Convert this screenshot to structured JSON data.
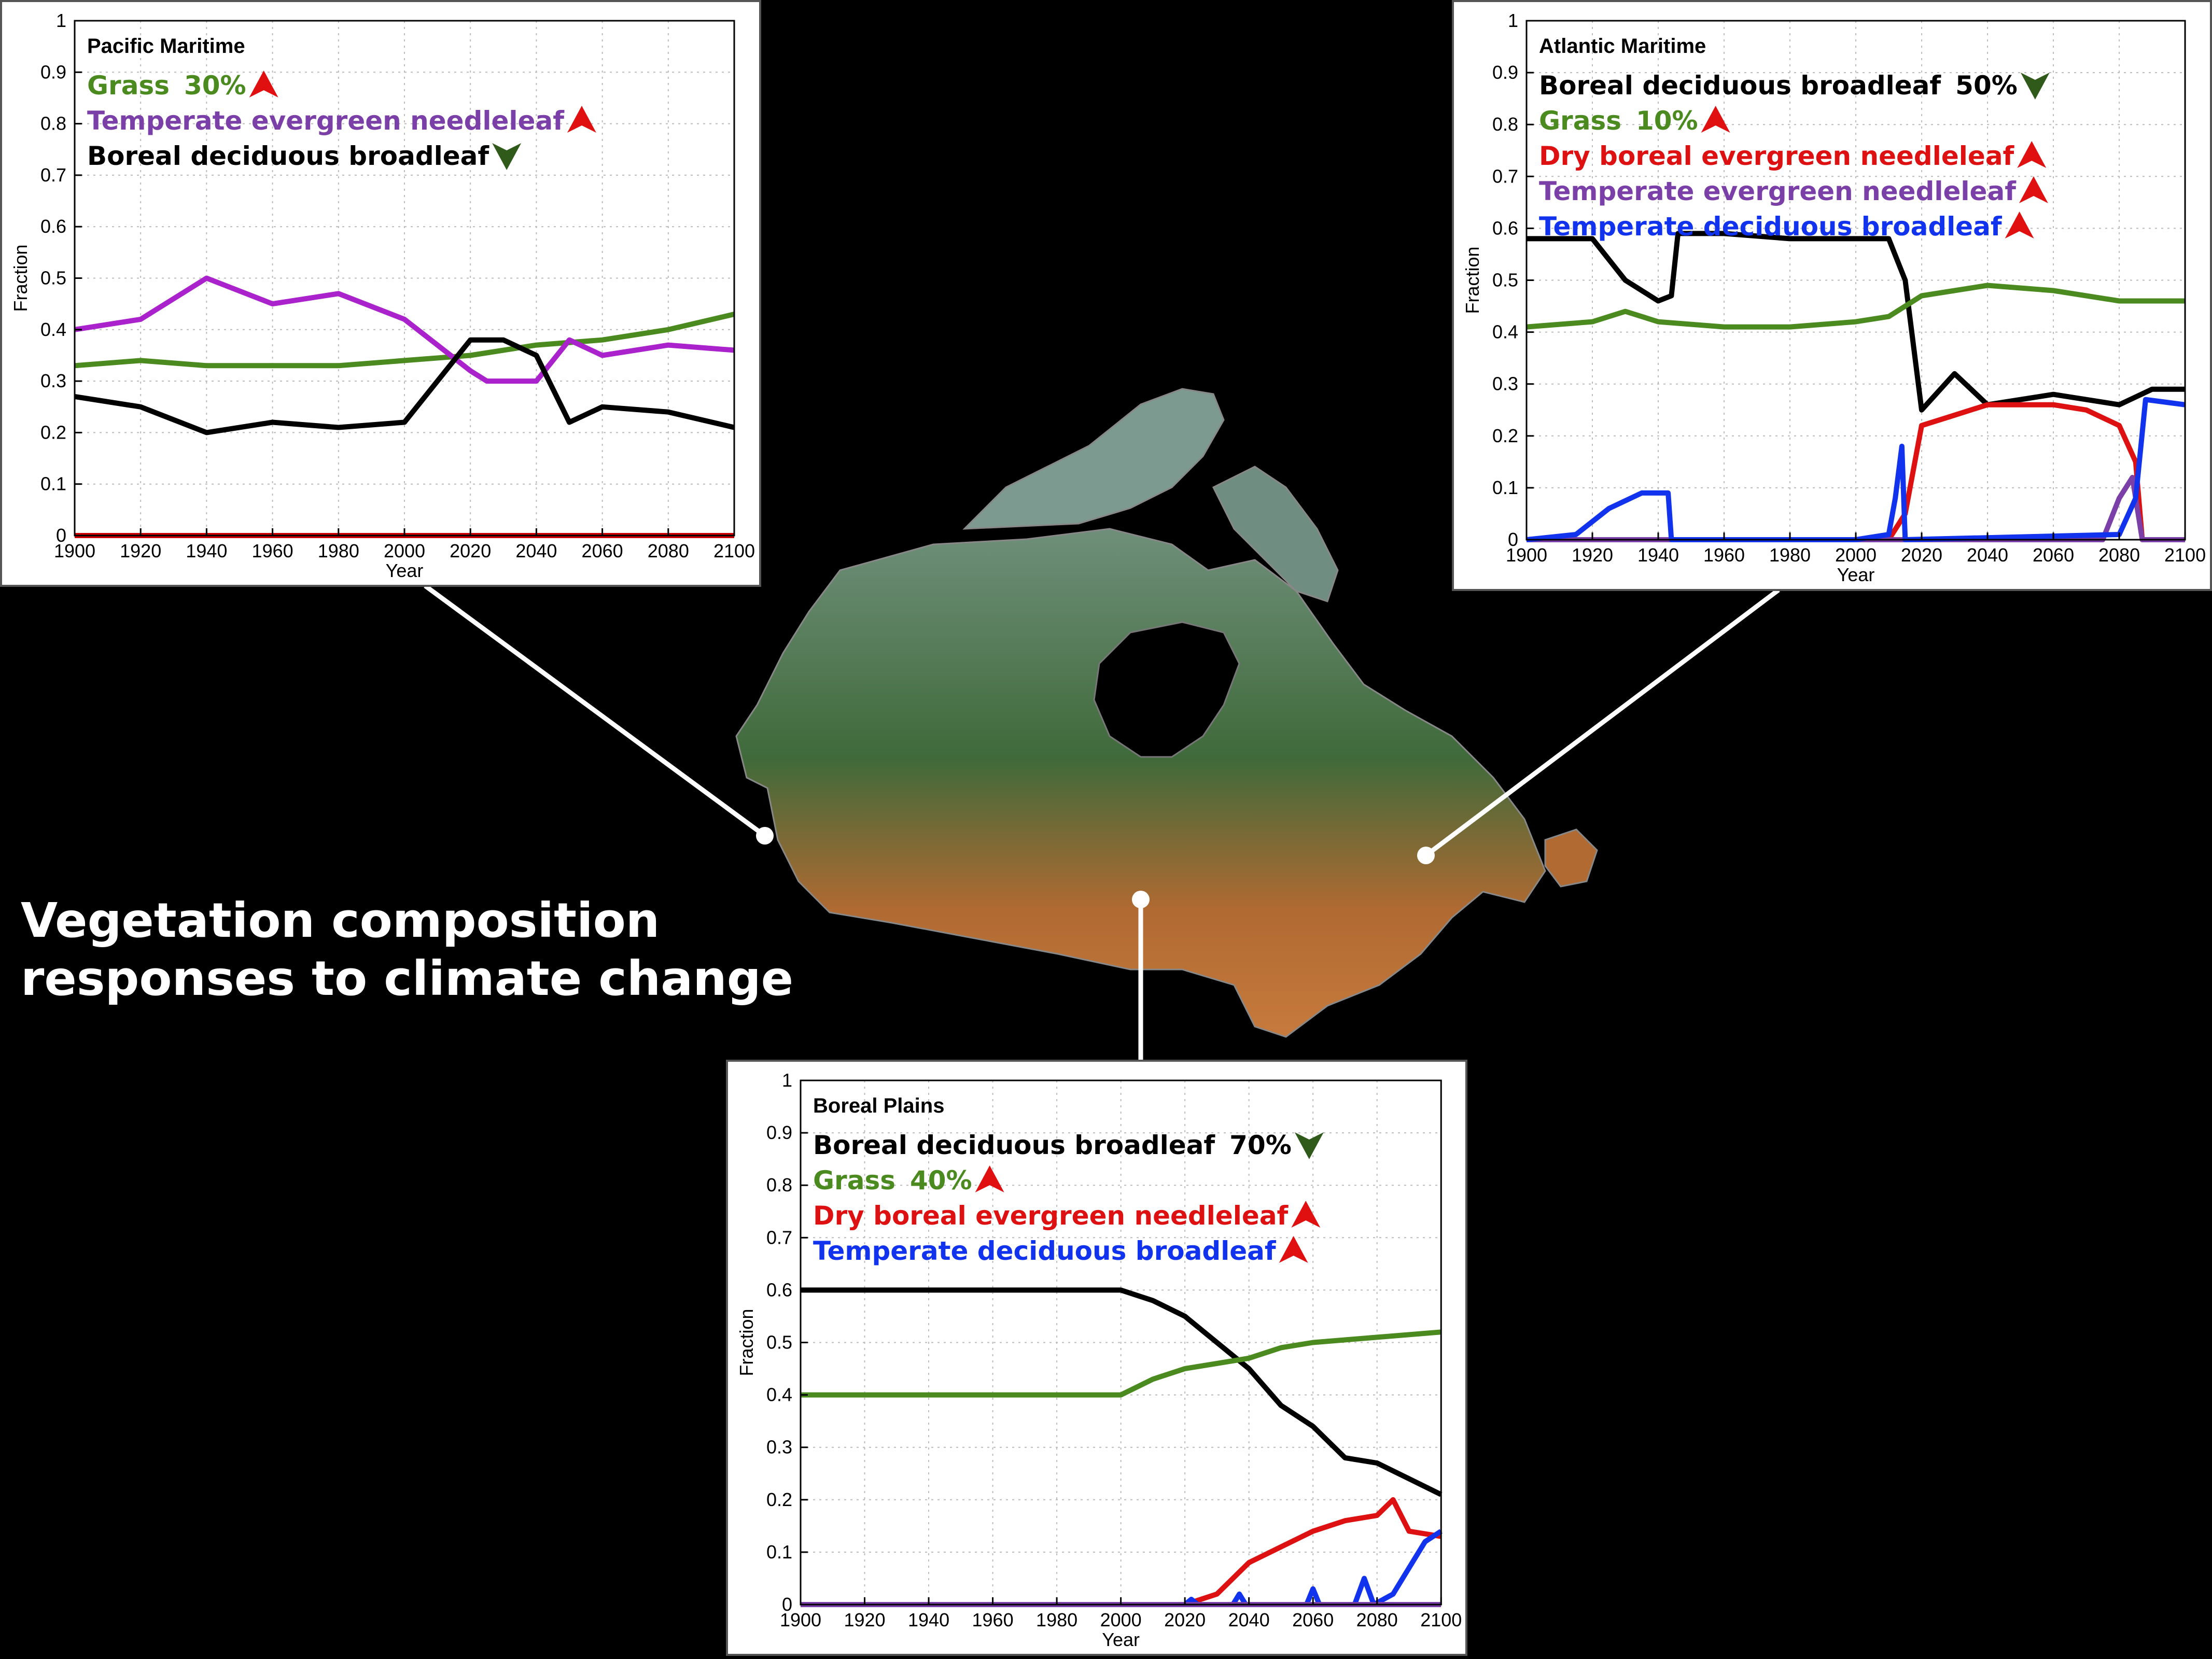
{
  "page_title_lines": [
    "Vegetation composition",
    "responses to climate change"
  ],
  "chart_data": [
    {
      "type": "line",
      "region": "Pacific Maritime",
      "xlabel": "Year",
      "ylabel": "Fraction",
      "xlim": [
        1900,
        2100
      ],
      "ylim": [
        0,
        1
      ],
      "xticks": [
        "1900",
        "1920",
        "1940",
        "1960",
        "1980",
        "2000",
        "2020",
        "2040",
        "2060",
        "2080",
        "2100"
      ],
      "yticks": [
        "0",
        "0.1",
        "0.2",
        "0.3",
        "0.4",
        "0.5",
        "0.6",
        "0.7",
        "0.8",
        "0.9",
        "1"
      ],
      "grid": true,
      "legend": [
        {
          "name": "Grass",
          "change": "30%",
          "direction": "up",
          "color": "#4a8a1f"
        },
        {
          "name": "Temperate evergreen needleleaf",
          "change": "",
          "direction": "up",
          "color": "#7b3fa8"
        },
        {
          "name": "Boreal deciduous broadleaf",
          "change": "",
          "direction": "down",
          "color": "#000000"
        }
      ],
      "series": [
        {
          "name": "Grass",
          "color": "#4a8a1f",
          "x": [
            1900,
            1920,
            1940,
            1960,
            1980,
            2000,
            2020,
            2040,
            2060,
            2080,
            2100
          ],
          "y": [
            0.33,
            0.34,
            0.33,
            0.33,
            0.33,
            0.34,
            0.35,
            0.37,
            0.38,
            0.4,
            0.43
          ]
        },
        {
          "name": "Temperate evergreen needleleaf",
          "color": "#aa22cc",
          "x": [
            1900,
            1920,
            1940,
            1960,
            1980,
            2000,
            2020,
            2025,
            2040,
            2050,
            2060,
            2080,
            2100
          ],
          "y": [
            0.4,
            0.42,
            0.5,
            0.45,
            0.47,
            0.42,
            0.32,
            0.3,
            0.3,
            0.38,
            0.35,
            0.37,
            0.36
          ]
        },
        {
          "name": "Boreal deciduous broadleaf",
          "color": "#000000",
          "x": [
            1900,
            1920,
            1940,
            1960,
            1980,
            2000,
            2020,
            2030,
            2040,
            2050,
            2060,
            2080,
            2100
          ],
          "y": [
            0.27,
            0.25,
            0.2,
            0.22,
            0.21,
            0.22,
            0.38,
            0.38,
            0.35,
            0.22,
            0.25,
            0.24,
            0.21
          ]
        },
        {
          "name": "",
          "color": "#cc0000",
          "x": [
            1900,
            2100
          ],
          "y": [
            0.0,
            0.0
          ]
        }
      ]
    },
    {
      "type": "line",
      "region": "Atlantic Maritime",
      "xlabel": "Year",
      "ylabel": "Fraction",
      "xlim": [
        1900,
        2100
      ],
      "ylim": [
        0,
        1
      ],
      "xticks": [
        "1900",
        "1920",
        "1940",
        "1960",
        "1980",
        "2000",
        "2020",
        "2040",
        "2060",
        "2080",
        "2100"
      ],
      "yticks": [
        "0",
        "0.1",
        "0.2",
        "0.3",
        "0.4",
        "0.5",
        "0.6",
        "0.7",
        "0.8",
        "0.9",
        "1"
      ],
      "grid": true,
      "legend": [
        {
          "name": "Boreal deciduous broadleaf",
          "change": "50%",
          "direction": "down",
          "color": "#000000"
        },
        {
          "name": "Grass",
          "change": "10%",
          "direction": "up",
          "color": "#4a8a1f"
        },
        {
          "name": "Dry boreal evergreen needleleaf",
          "change": "",
          "direction": "up",
          "color": "#dd1111"
        },
        {
          "name": "Temperate evergreen needleleaf",
          "change": "",
          "direction": "up",
          "color": "#7b3fa8"
        },
        {
          "name": "Temperate deciduous broadleaf",
          "change": "",
          "direction": "up",
          "color": "#1133ee"
        }
      ],
      "series": [
        {
          "name": "Boreal deciduous broadleaf",
          "color": "#000000",
          "x": [
            1900,
            1920,
            1930,
            1940,
            1944,
            1946,
            1960,
            1980,
            2000,
            2010,
            2015,
            2020,
            2030,
            2040,
            2060,
            2080,
            2090,
            2100
          ],
          "y": [
            0.58,
            0.58,
            0.5,
            0.46,
            0.47,
            0.59,
            0.59,
            0.58,
            0.58,
            0.58,
            0.5,
            0.25,
            0.32,
            0.26,
            0.28,
            0.26,
            0.29,
            0.29
          ]
        },
        {
          "name": "Grass",
          "color": "#4a8a1f",
          "x": [
            1900,
            1920,
            1930,
            1940,
            1960,
            1980,
            2000,
            2010,
            2020,
            2040,
            2060,
            2080,
            2100
          ],
          "y": [
            0.41,
            0.42,
            0.44,
            0.42,
            0.41,
            0.41,
            0.42,
            0.43,
            0.47,
            0.49,
            0.48,
            0.46,
            0.46
          ]
        },
        {
          "name": "Dry boreal evergreen needleleaf",
          "color": "#dd1111",
          "x": [
            1900,
            2010,
            2015,
            2020,
            2030,
            2040,
            2060,
            2070,
            2080,
            2085,
            2087,
            2100
          ],
          "y": [
            0.0,
            0.0,
            0.05,
            0.22,
            0.24,
            0.26,
            0.26,
            0.25,
            0.22,
            0.15,
            0.0,
            0.0
          ]
        },
        {
          "name": "Temperate evergreen needleleaf",
          "color": "#7b3fa8",
          "x": [
            1900,
            2075,
            2080,
            2084,
            2087,
            2100
          ],
          "y": [
            0.0,
            0.0,
            0.08,
            0.12,
            0.0,
            0.0
          ]
        },
        {
          "name": "Temperate deciduous broadleaf",
          "color": "#1133ee",
          "x": [
            1900,
            1915,
            1925,
            1935,
            1943,
            1944,
            2000,
            2010,
            2012,
            2014,
            2015,
            2080,
            2085,
            2088,
            2100
          ],
          "y": [
            0.0,
            0.01,
            0.06,
            0.09,
            0.09,
            0.0,
            0.0,
            0.01,
            0.08,
            0.18,
            0.0,
            0.01,
            0.08,
            0.27,
            0.26
          ]
        }
      ]
    },
    {
      "type": "line",
      "region": "Boreal Plains",
      "xlabel": "Year",
      "ylabel": "Fraction",
      "xlim": [
        1900,
        2100
      ],
      "ylim": [
        0,
        1
      ],
      "xticks": [
        "1900",
        "1920",
        "1940",
        "1960",
        "1980",
        "2000",
        "2020",
        "2040",
        "2060",
        "2080",
        "2100"
      ],
      "yticks": [
        "0",
        "0.1",
        "0.2",
        "0.3",
        "0.4",
        "0.5",
        "0.6",
        "0.7",
        "0.8",
        "0.9",
        "1"
      ],
      "grid": true,
      "legend": [
        {
          "name": "Boreal deciduous broadleaf",
          "change": "70%",
          "direction": "down",
          "color": "#000000"
        },
        {
          "name": "Grass",
          "change": "40%",
          "direction": "up",
          "color": "#4a8a1f"
        },
        {
          "name": "Dry boreal evergreen needleleaf",
          "change": "",
          "direction": "up",
          "color": "#dd1111"
        },
        {
          "name": "Temperate deciduous broadleaf",
          "change": "",
          "direction": "up",
          "color": "#1133ee"
        }
      ],
      "series": [
        {
          "name": "Boreal deciduous broadleaf",
          "color": "#000000",
          "x": [
            1900,
            1920,
            1940,
            1960,
            1980,
            2000,
            2010,
            2020,
            2030,
            2040,
            2050,
            2060,
            2070,
            2080,
            2090,
            2100
          ],
          "y": [
            0.6,
            0.6,
            0.6,
            0.6,
            0.6,
            0.6,
            0.58,
            0.55,
            0.5,
            0.45,
            0.38,
            0.34,
            0.28,
            0.27,
            0.24,
            0.21
          ]
        },
        {
          "name": "Grass",
          "color": "#4a8a1f",
          "x": [
            1900,
            1920,
            1940,
            1960,
            1980,
            2000,
            2010,
            2020,
            2030,
            2040,
            2050,
            2060,
            2080,
            2100
          ],
          "y": [
            0.4,
            0.4,
            0.4,
            0.4,
            0.4,
            0.4,
            0.43,
            0.45,
            0.46,
            0.47,
            0.49,
            0.5,
            0.51,
            0.52
          ]
        },
        {
          "name": "Dry boreal evergreen needleleaf",
          "color": "#dd1111",
          "x": [
            1900,
            2020,
            2030,
            2040,
            2050,
            2060,
            2070,
            2080,
            2085,
            2090,
            2100
          ],
          "y": [
            0.0,
            0.0,
            0.02,
            0.08,
            0.11,
            0.14,
            0.16,
            0.17,
            0.2,
            0.14,
            0.13
          ]
        },
        {
          "name": "Temperate deciduous broadleaf",
          "color": "#1133ee",
          "x": [
            1900,
            2020,
            2022,
            2024,
            2035,
            2037,
            2039,
            2058,
            2060,
            2062,
            2073,
            2076,
            2079,
            2085,
            2090,
            2095,
            2100
          ],
          "y": [
            0.0,
            0.0,
            0.01,
            0.0,
            0.0,
            0.02,
            0.0,
            0.0,
            0.03,
            0.0,
            0.0,
            0.05,
            0.0,
            0.02,
            0.07,
            0.12,
            0.14
          ]
        },
        {
          "name": "",
          "color": "#7b3fa8",
          "x": [
            1900,
            2100
          ],
          "y": [
            0.0,
            0.0
          ]
        }
      ]
    }
  ]
}
